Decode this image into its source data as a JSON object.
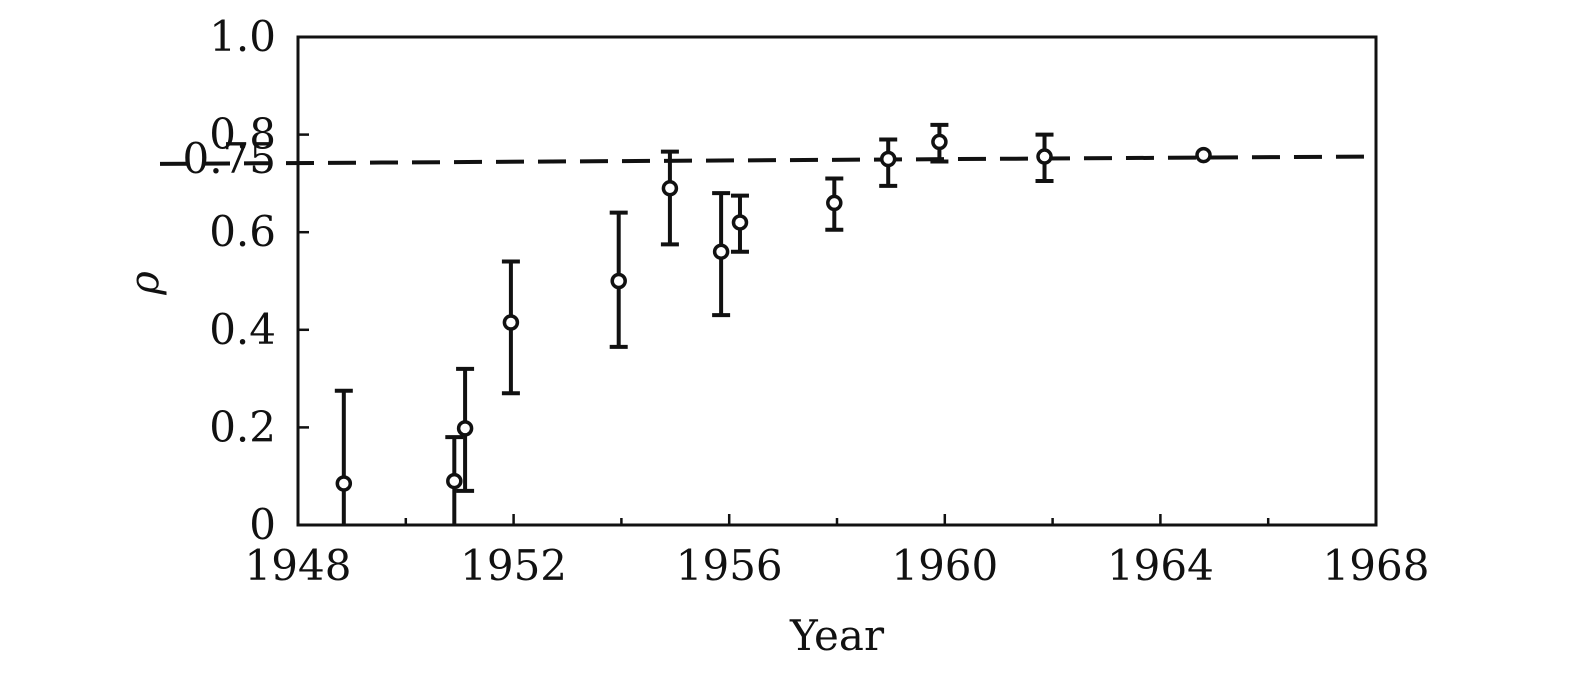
{
  "chart_data": {
    "type": "scatter",
    "title": "",
    "xlabel": "Year",
    "ylabel": "ρ",
    "xlim": [
      1948,
      1968
    ],
    "ylim": [
      0,
      1.0
    ],
    "x_ticks": [
      1948,
      1952,
      1956,
      1960,
      1964,
      1968
    ],
    "x_tick_labels": [
      "1948",
      "1952",
      "1956",
      "1960",
      "1964",
      "1968"
    ],
    "x_minor_ticks": [
      1950,
      1954,
      1958,
      1962,
      1966
    ],
    "y_ticks": [
      0,
      0.2,
      0.4,
      0.6,
      0.75,
      0.8,
      1.0
    ],
    "y_tick_labels": [
      "0",
      "0.2",
      "0.4",
      "0.6",
      "0.75",
      "0.8",
      "1.0"
    ],
    "grid": false,
    "legend": "none",
    "reference_line": {
      "style": "dashed",
      "y_start": 0.74,
      "y_end": 0.755
    },
    "points": [
      {
        "x": 1948.85,
        "y": 0.085,
        "low": 0.0,
        "high": 0.275
      },
      {
        "x": 1950.9,
        "y": 0.09,
        "low": 0.0,
        "high": 0.18
      },
      {
        "x": 1951.1,
        "y": 0.198,
        "low": 0.07,
        "high": 0.32
      },
      {
        "x": 1951.95,
        "y": 0.415,
        "low": 0.27,
        "high": 0.54
      },
      {
        "x": 1953.95,
        "y": 0.5,
        "low": 0.365,
        "high": 0.64
      },
      {
        "x": 1954.9,
        "y": 0.69,
        "low": 0.575,
        "high": 0.765
      },
      {
        "x": 1955.85,
        "y": 0.56,
        "low": 0.43,
        "high": 0.68
      },
      {
        "x": 1956.2,
        "y": 0.62,
        "low": 0.56,
        "high": 0.675
      },
      {
        "x": 1957.95,
        "y": 0.66,
        "low": 0.605,
        "high": 0.71
      },
      {
        "x": 1958.95,
        "y": 0.75,
        "low": 0.695,
        "high": 0.79
      },
      {
        "x": 1959.9,
        "y": 0.785,
        "low": 0.745,
        "high": 0.82
      },
      {
        "x": 1961.85,
        "y": 0.755,
        "low": 0.705,
        "high": 0.8
      },
      {
        "x": 1964.8,
        "y": 0.758,
        "low": 0.758,
        "high": 0.758
      }
    ]
  }
}
